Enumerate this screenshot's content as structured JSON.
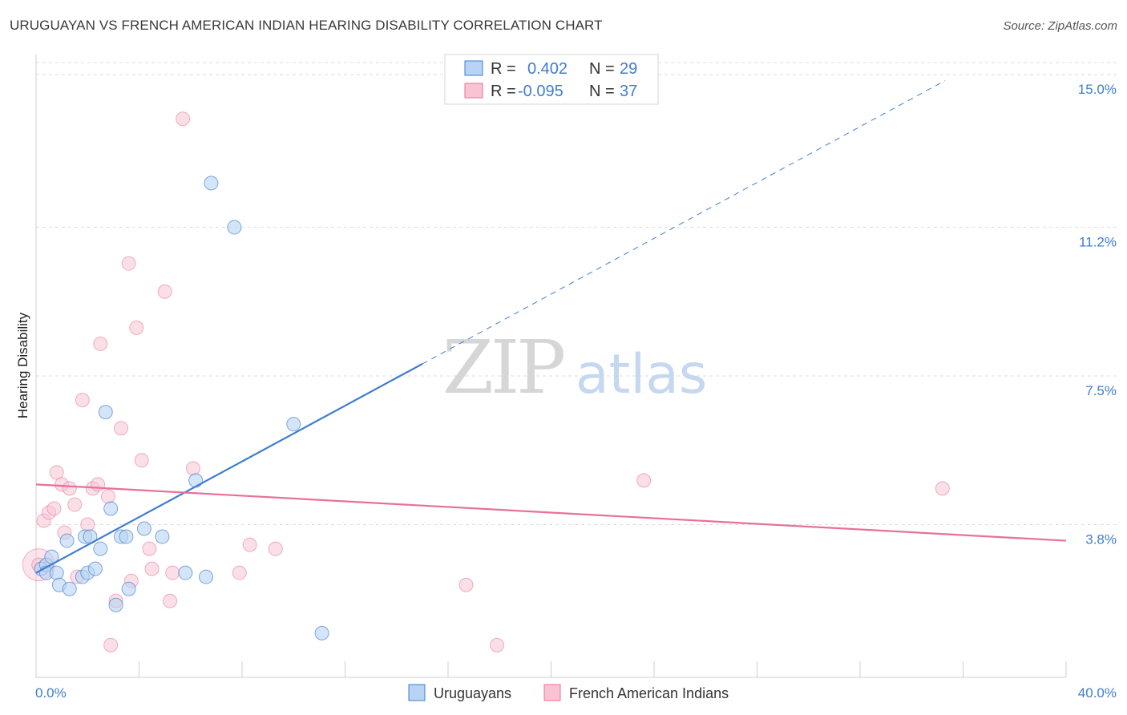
{
  "header": {
    "title": "URUGUAYAN VS FRENCH AMERICAN INDIAN HEARING DISABILITY CORRELATION CHART",
    "source": "Source: ZipAtlas.com"
  },
  "watermark": {
    "zip": "ZIP",
    "atlas": "atlas"
  },
  "colors": {
    "blue": "#3f7dd0",
    "blue_fill": "#b8d3f3",
    "pink": "#e8709a",
    "pink_fill": "#f8c4d4",
    "grid": "#dedede",
    "tick_label": "#3f7dd0"
  },
  "legend": {
    "rows": [
      {
        "r_label": "R =",
        "r_value": "0.402",
        "n_label": "N =",
        "n_value": "29"
      },
      {
        "r_label": "R =",
        "r_value": "-0.095",
        "n_label": "N =",
        "n_value": "37"
      }
    ]
  },
  "bottom_legend": [
    "Uruguayans",
    "French American Indians"
  ],
  "chart_data": {
    "type": "scatter",
    "title": "URUGUAYAN VS FRENCH AMERICAN INDIAN HEARING DISABILITY CORRELATION CHART",
    "xlabel": "",
    "ylabel": "Hearing Disability",
    "xlim": [
      0,
      40
    ],
    "ylim": [
      0,
      15.5
    ],
    "x_tick_labels": [
      "0.0%",
      "40.0%"
    ],
    "y_ticks": [
      3.8,
      7.5,
      11.2,
      15.0
    ],
    "y_tick_labels": [
      "3.8%",
      "7.5%",
      "11.2%",
      "15.0%"
    ],
    "grid": true,
    "series": [
      {
        "name": "Uruguayans",
        "r": 0.402,
        "n": 29,
        "trend": {
          "x0": 0.0,
          "y0": 2.6,
          "x1": 15.0,
          "y1": 7.8,
          "dashed_to_x": 35.3,
          "dashed_to_y": 14.85
        },
        "points": [
          [
            0.2,
            2.7
          ],
          [
            0.4,
            2.8
          ],
          [
            0.6,
            3.0
          ],
          [
            0.4,
            2.6
          ],
          [
            0.8,
            2.6
          ],
          [
            0.9,
            2.3
          ],
          [
            1.2,
            3.4
          ],
          [
            1.3,
            2.2
          ],
          [
            1.8,
            2.5
          ],
          [
            2.0,
            2.6
          ],
          [
            1.9,
            3.5
          ],
          [
            2.1,
            3.5
          ],
          [
            2.3,
            2.7
          ],
          [
            2.5,
            3.2
          ],
          [
            2.7,
            6.6
          ],
          [
            2.9,
            4.2
          ],
          [
            3.1,
            1.8
          ],
          [
            3.3,
            3.5
          ],
          [
            3.5,
            3.5
          ],
          [
            3.6,
            2.2
          ],
          [
            4.2,
            3.7
          ],
          [
            4.9,
            3.5
          ],
          [
            5.8,
            2.6
          ],
          [
            6.2,
            4.9
          ],
          [
            6.6,
            2.5
          ],
          [
            6.8,
            12.3
          ],
          [
            7.7,
            11.2
          ],
          [
            10.0,
            6.3
          ],
          [
            11.1,
            1.1
          ]
        ]
      },
      {
        "name": "French American Indians",
        "r": -0.095,
        "n": 37,
        "trend": {
          "x0": 0.0,
          "y0": 4.8,
          "x1": 40.0,
          "y1": 3.4
        },
        "points": [
          [
            0.1,
            2.8
          ],
          [
            0.3,
            3.9
          ],
          [
            0.5,
            4.1
          ],
          [
            0.7,
            4.2
          ],
          [
            0.8,
            5.1
          ],
          [
            1.0,
            4.8
          ],
          [
            1.1,
            3.6
          ],
          [
            1.3,
            4.7
          ],
          [
            1.5,
            4.3
          ],
          [
            1.6,
            2.5
          ],
          [
            1.8,
            6.9
          ],
          [
            2.0,
            3.8
          ],
          [
            2.2,
            4.7
          ],
          [
            2.4,
            4.8
          ],
          [
            2.5,
            8.3
          ],
          [
            2.8,
            4.5
          ],
          [
            2.9,
            0.8
          ],
          [
            3.1,
            1.9
          ],
          [
            3.3,
            6.2
          ],
          [
            3.6,
            10.3
          ],
          [
            3.7,
            2.4
          ],
          [
            3.9,
            8.7
          ],
          [
            4.1,
            5.4
          ],
          [
            4.4,
            3.2
          ],
          [
            4.5,
            2.7
          ],
          [
            5.0,
            9.6
          ],
          [
            5.2,
            1.9
          ],
          [
            5.3,
            2.6
          ],
          [
            5.7,
            13.9
          ],
          [
            6.1,
            5.2
          ],
          [
            7.9,
            2.6
          ],
          [
            8.3,
            3.3
          ],
          [
            9.3,
            3.2
          ],
          [
            16.7,
            2.3
          ],
          [
            17.9,
            0.8
          ],
          [
            23.6,
            4.9
          ],
          [
            35.2,
            4.7
          ]
        ]
      }
    ]
  }
}
